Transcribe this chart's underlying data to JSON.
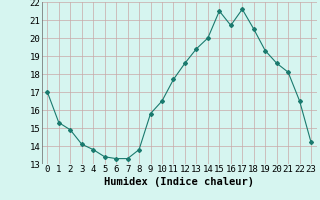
{
  "x": [
    0,
    1,
    2,
    3,
    4,
    5,
    6,
    7,
    8,
    9,
    10,
    11,
    12,
    13,
    14,
    15,
    16,
    17,
    18,
    19,
    20,
    21,
    22,
    23
  ],
  "y": [
    17.0,
    15.3,
    14.9,
    14.1,
    13.8,
    13.4,
    13.3,
    13.3,
    13.8,
    15.8,
    16.5,
    17.7,
    18.6,
    19.4,
    20.0,
    21.5,
    20.7,
    21.6,
    20.5,
    19.3,
    18.6,
    18.1,
    16.5,
    14.2
  ],
  "line_color": "#1a7a6e",
  "marker": "D",
  "marker_size": 2.0,
  "bg_color": "#d6f5f0",
  "grid_color": "#c8a8a8",
  "xlabel": "Humidex (Indice chaleur)",
  "xlabel_fontsize": 7.5,
  "tick_fontsize": 6.5,
  "ylim": [
    13,
    22
  ],
  "xlim": [
    -0.5,
    23.5
  ],
  "yticks": [
    13,
    14,
    15,
    16,
    17,
    18,
    19,
    20,
    21,
    22
  ],
  "xticks": [
    0,
    1,
    2,
    3,
    4,
    5,
    6,
    7,
    8,
    9,
    10,
    11,
    12,
    13,
    14,
    15,
    16,
    17,
    18,
    19,
    20,
    21,
    22,
    23
  ]
}
